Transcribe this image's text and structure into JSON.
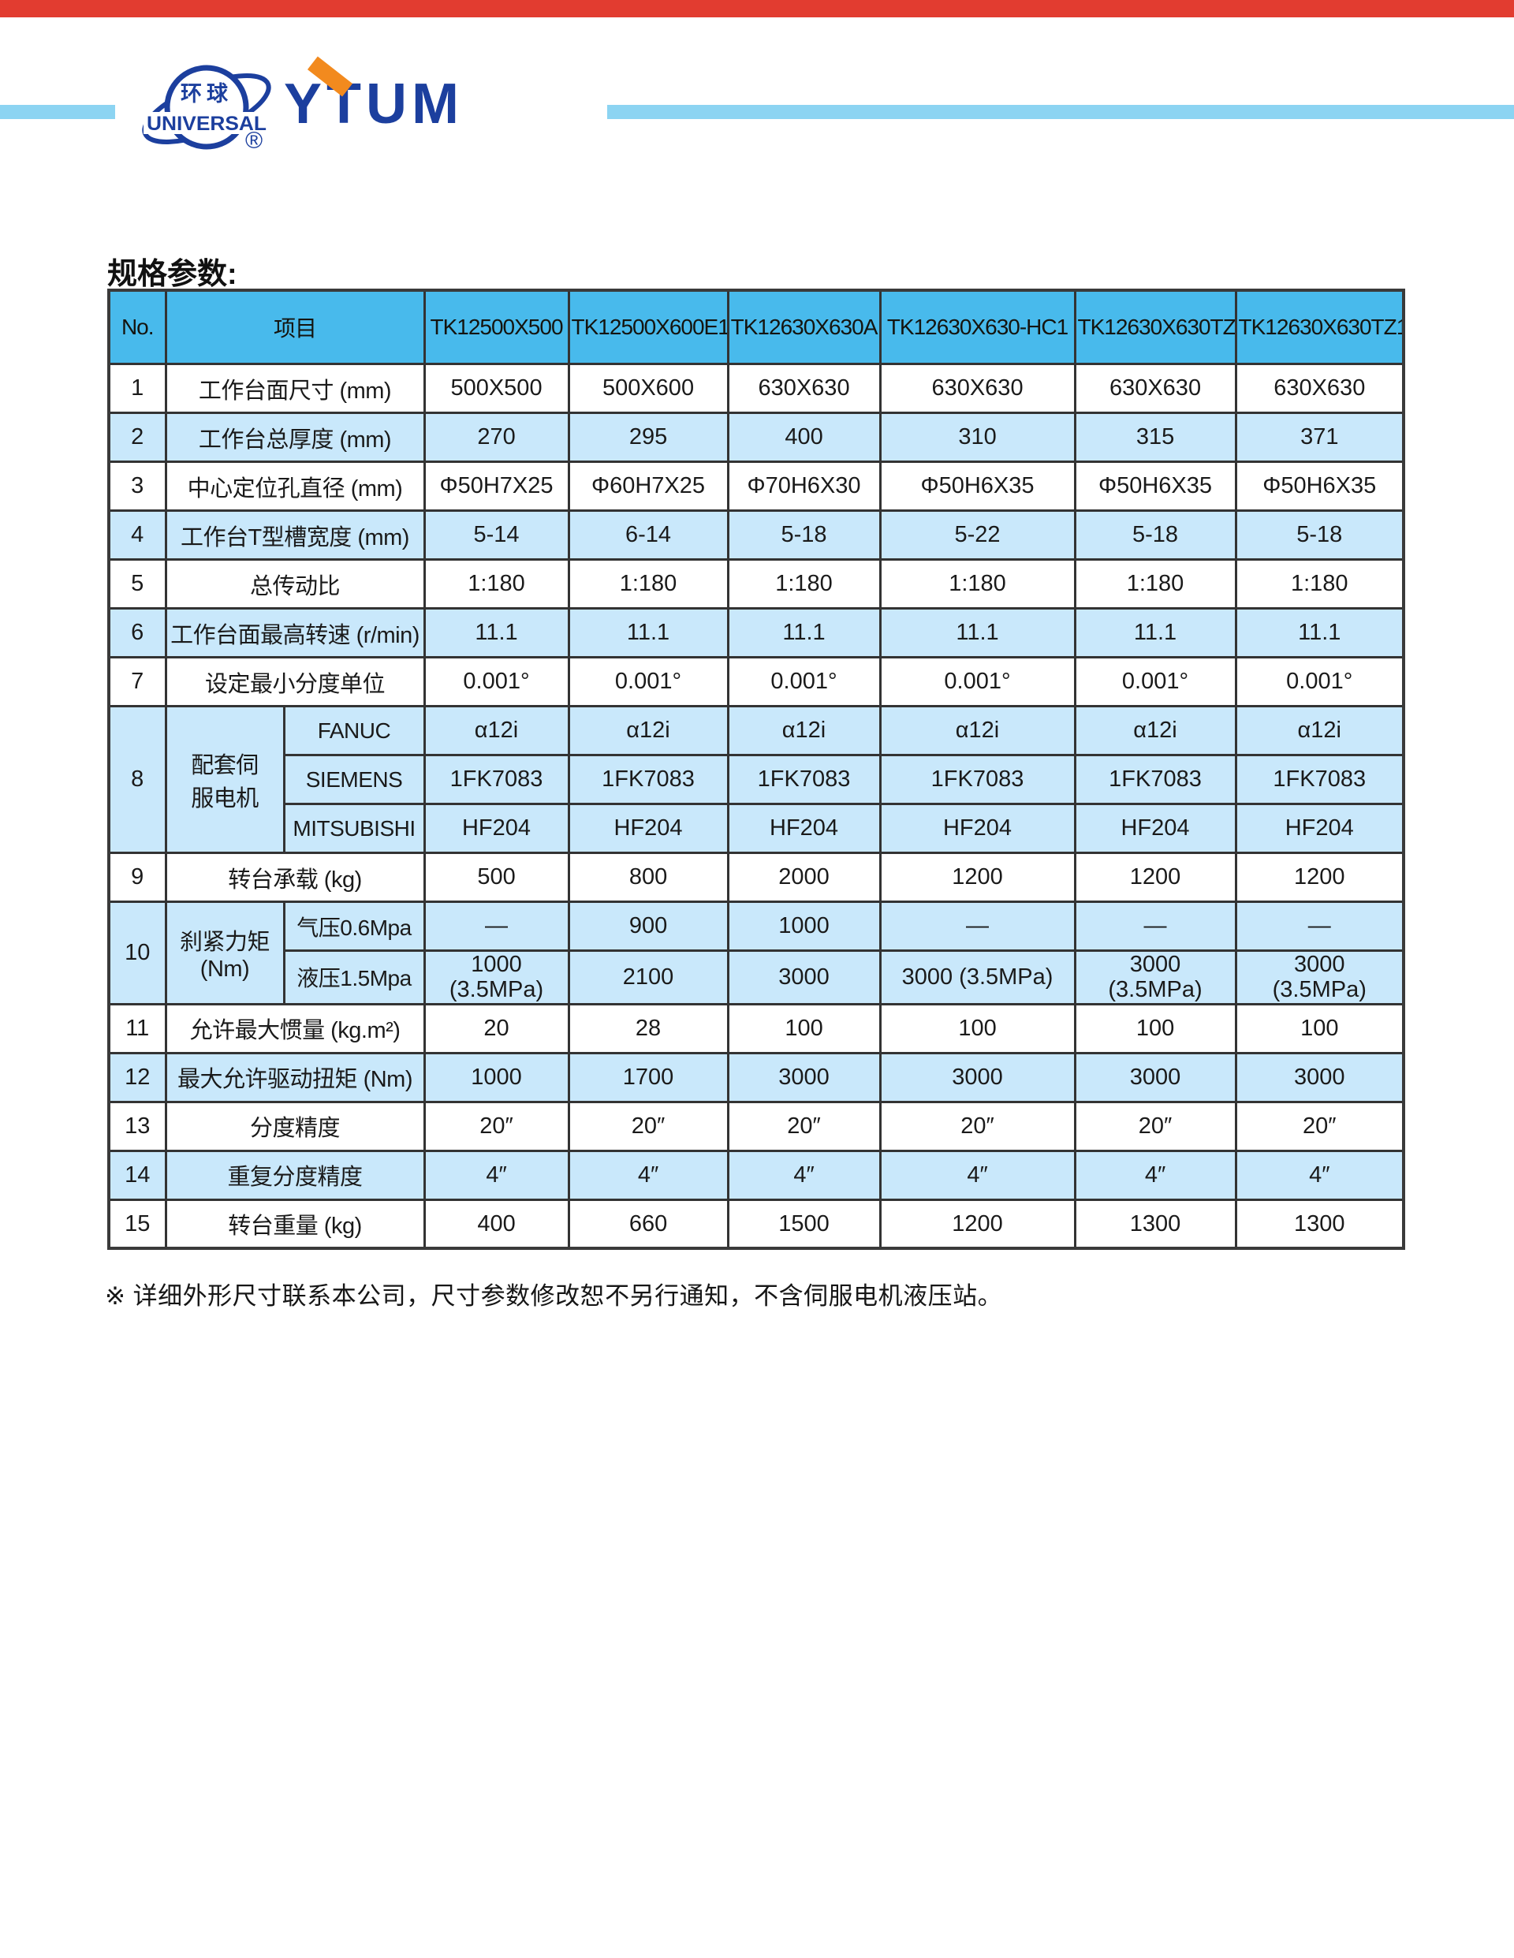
{
  "page": {
    "background": "#ffffff"
  },
  "top_bar": {
    "color": "#e23c30"
  },
  "brand": {
    "globe_text_cn": "环球",
    "globe_text_en": "UNIVERSAL",
    "reg_mark": "®",
    "wordmark": "YTUM",
    "colors": {
      "blue": "#1c3f9e",
      "orange": "#f28a1e",
      "light_blue_bar": "#8cd4f2"
    }
  },
  "title": "规格参数:",
  "table": {
    "colors": {
      "header_bg": "#48baec",
      "stripe_bg": "#c9e8fb",
      "border": "#333333"
    },
    "headers": {
      "no": "No.",
      "item": "项目",
      "models": [
        "TK12500X500",
        "TK12500X600E1",
        "TK12630X630A",
        "TK12630X630-HC1",
        "TK12630X630TZ",
        "TK12630X630TZ1"
      ]
    },
    "rows": [
      {
        "no": "1",
        "label": "工作台面尺寸 (mm)",
        "shade": false,
        "values": [
          "500X500",
          "500X600",
          "630X630",
          "630X630",
          "630X630",
          "630X630"
        ]
      },
      {
        "no": "2",
        "label": "工作台总厚度 (mm)",
        "shade": true,
        "values": [
          "270",
          "295",
          "400",
          "310",
          "315",
          "371"
        ]
      },
      {
        "no": "3",
        "label": "中心定位孔直径 (mm)",
        "shade": false,
        "values": [
          "Φ50H7X25",
          "Φ60H7X25",
          "Φ70H6X30",
          "Φ50H6X35",
          "Φ50H6X35",
          "Φ50H6X35"
        ]
      },
      {
        "no": "4",
        "label": "工作台T型槽宽度 (mm)",
        "shade": true,
        "values": [
          "5-14",
          "6-14",
          "5-18",
          "5-22",
          "5-18",
          "5-18"
        ]
      },
      {
        "no": "5",
        "label": "总传动比",
        "shade": false,
        "values": [
          "1:180",
          "1:180",
          "1:180",
          "1:180",
          "1:180",
          "1:180"
        ]
      },
      {
        "no": "6",
        "label": "工作台面最高转速 (r/min)",
        "shade": true,
        "values": [
          "11.1",
          "11.1",
          "11.1",
          "11.1",
          "11.1",
          "11.1"
        ]
      },
      {
        "no": "7",
        "label": "设定最小分度单位",
        "shade": false,
        "values": [
          "0.001°",
          "0.001°",
          "0.001°",
          "0.001°",
          "0.001°",
          "0.001°"
        ]
      },
      {
        "no": "8",
        "label": "配套伺\n服电机",
        "shade": true,
        "subs": [
          {
            "sub": "FANUC",
            "values": [
              "α12i",
              "α12i",
              "α12i",
              "α12i",
              "α12i",
              "α12i"
            ]
          },
          {
            "sub": "SIEMENS",
            "values": [
              "1FK7083",
              "1FK7083",
              "1FK7083",
              "1FK7083",
              "1FK7083",
              "1FK7083"
            ]
          },
          {
            "sub": "MITSUBISHI",
            "values": [
              "HF204",
              "HF204",
              "HF204",
              "HF204",
              "HF204",
              "HF204"
            ]
          }
        ]
      },
      {
        "no": "9",
        "label": "转台承载 (kg)",
        "shade": false,
        "values": [
          "500",
          "800",
          "2000",
          "1200",
          "1200",
          "1200"
        ]
      },
      {
        "no": "10",
        "label": "刹紧力矩\n(Nm)",
        "shade": true,
        "subs": [
          {
            "sub": "气压0.6Mpa",
            "values": [
              "—",
              "900",
              "1000",
              "—",
              "—",
              "—"
            ]
          },
          {
            "sub": "液压1.5Mpa",
            "tall": true,
            "values": [
              "1000\n(3.5MPa)",
              "2100",
              "3000",
              "3000 (3.5MPa)",
              "3000\n(3.5MPa)",
              "3000\n(3.5MPa)"
            ]
          }
        ]
      },
      {
        "no": "11",
        "label": "允许最大惯量 (kg.m²)",
        "shade": false,
        "values": [
          "20",
          "28",
          "100",
          "100",
          "100",
          "100"
        ]
      },
      {
        "no": "12",
        "label": "最大允许驱动扭矩 (Nm)",
        "shade": true,
        "values": [
          "1000",
          "1700",
          "3000",
          "3000",
          "3000",
          "3000"
        ]
      },
      {
        "no": "13",
        "label": "分度精度",
        "shade": false,
        "values": [
          "20″",
          "20″",
          "20″",
          "20″",
          "20″",
          "20″"
        ]
      },
      {
        "no": "14",
        "label": "重复分度精度",
        "shade": true,
        "values": [
          "4″",
          "4″",
          "4″",
          "4″",
          "4″",
          "4″"
        ]
      },
      {
        "no": "15",
        "label": "转台重量 (kg)",
        "shade": false,
        "values": [
          "400",
          "660",
          "1500",
          "1200",
          "1300",
          "1300"
        ]
      }
    ]
  },
  "footnote": "※ 详细外形尺寸联系本公司，尺寸参数修改恕不另行通知，不含伺服电机液压站。"
}
